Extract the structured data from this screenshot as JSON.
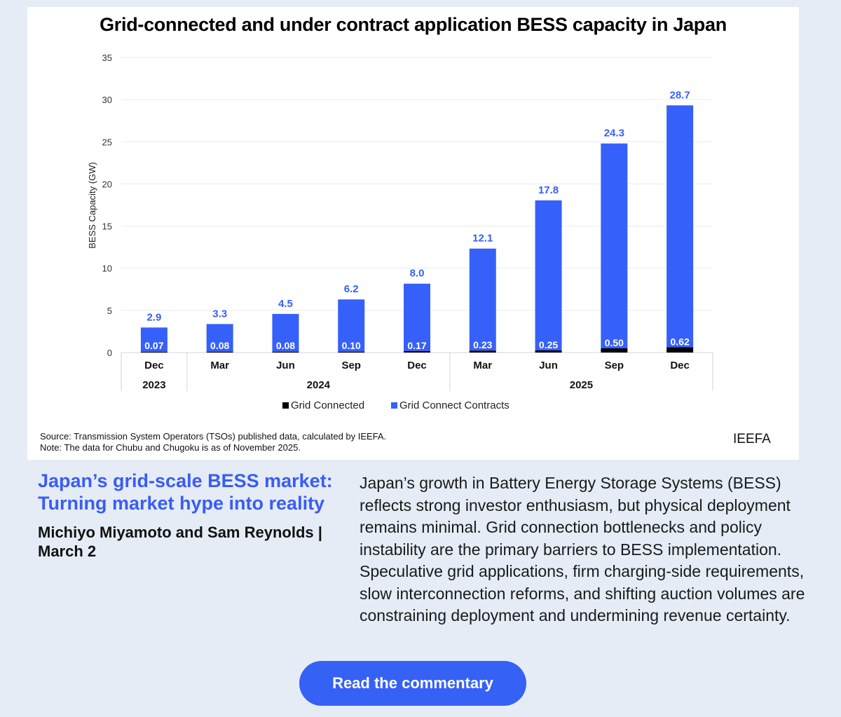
{
  "chart_data": {
    "type": "bar",
    "stacked": true,
    "title": "Grid-connected and under contract application BESS capacity in Japan",
    "ylabel": "BESS Capacity (GW)",
    "ylim": [
      0,
      35
    ],
    "yticks": [
      "0",
      "5",
      "10",
      "15",
      "20",
      "25",
      "30",
      "35"
    ],
    "grid": true,
    "legend_position": "bottom",
    "categories": [
      "Dec",
      "Mar",
      "Jun",
      "Sep",
      "Dec",
      "Mar",
      "Jun",
      "Sep",
      "Dec"
    ],
    "year_groups": [
      {
        "label": "2023",
        "span": 1
      },
      {
        "label": "2024",
        "span": 4
      },
      {
        "label": "2025",
        "span": 4
      }
    ],
    "series": [
      {
        "name": "Grid Connected",
        "color": "#000000",
        "values": [
          0.07,
          0.08,
          0.08,
          0.1,
          0.17,
          0.23,
          0.25,
          0.5,
          0.62
        ],
        "labels": [
          "0.07",
          "0.08",
          "0.08",
          "0.10",
          "0.17",
          "0.23",
          "0.25",
          "0.50",
          "0.62"
        ]
      },
      {
        "name": "Grid Connect Contracts",
        "color": "#3660fa",
        "values": [
          2.9,
          3.3,
          4.5,
          6.2,
          8.0,
          12.1,
          17.8,
          24.3,
          28.7
        ],
        "labels": [
          "2.9",
          "3.3",
          "4.5",
          "6.2",
          "8.0",
          "12.1",
          "17.8",
          "24.3",
          "28.7"
        ]
      }
    ]
  },
  "source": "Source: Transmission System Operators (TSOs) published data, calculated by IEEFA.",
  "note": "Note: The data for Chubu and Chugoku is as of November 2025.",
  "brand": "IEEFA",
  "article": {
    "title": "Japan’s grid-scale BESS market: Turning market hype into reality",
    "byline": "Michiyo Miyamoto and Sam Reynolds | March 2",
    "body": "Japan’s growth in Battery Energy Storage Systems (BESS) reflects strong investor enthusiasm, but physical deployment remains minimal. Grid connection bottlenecks and policy instability are the primary barriers to BESS implementation. Speculative grid applications, firm charging-side requirements, slow interconnection reforms, and shifting auction volumes are constraining deployment and undermining revenue certainty.",
    "button": "Read the commentary"
  }
}
